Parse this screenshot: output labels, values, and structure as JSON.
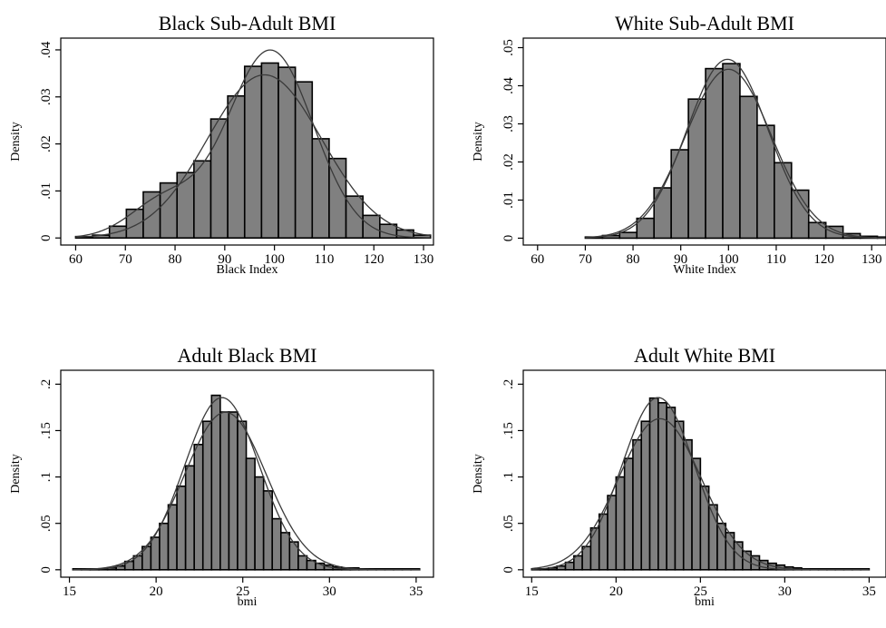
{
  "chart_data": [
    {
      "type": "bar",
      "title": "Black Sub-Adult BMI",
      "xlabel": "Black Index",
      "ylabel": "Density",
      "xlim": [
        57,
        132
      ],
      "ylim": [
        -0.0015,
        0.0425
      ],
      "xticks": [
        60,
        70,
        80,
        90,
        100,
        110,
        120,
        130
      ],
      "yticks": [
        0,
        0.01,
        0.02,
        0.03,
        0.04
      ],
      "xtick_labels": [
        "60",
        "70",
        "80",
        "90",
        "100",
        "110",
        "120",
        "130"
      ],
      "ytick_labels": [
        "0",
        ".01",
        ".02",
        ".03",
        ".04"
      ],
      "bin_edges": [
        60,
        63.4,
        66.8,
        70.2,
        73.6,
        77,
        80.4,
        83.8,
        87.2,
        90.6,
        94,
        97.4,
        100.8,
        104.2,
        107.6,
        111,
        114.4,
        117.8,
        121.2,
        124.6,
        128,
        131.4
      ],
      "values": [
        0.0003,
        0.0006,
        0.0025,
        0.0061,
        0.0098,
        0.0117,
        0.0139,
        0.0164,
        0.0253,
        0.0302,
        0.0365,
        0.0372,
        0.0363,
        0.0332,
        0.0211,
        0.0169,
        0.0089,
        0.0048,
        0.0029,
        0.0017,
        0.0006
      ],
      "curves": [
        {
          "type": "normal",
          "mean": 98,
          "sd": 11.5
        },
        {
          "type": "kernel",
          "components": [
            {
              "w": 0.86,
              "mean": 99.2,
              "sd": 8.6
            },
            {
              "w": 0.14,
              "mean": 78,
              "sd": 7
            }
          ]
        }
      ]
    },
    {
      "type": "bar",
      "title": "White Sub-Adult BMI",
      "xlabel": "White Index",
      "ylabel": "Density",
      "xlim": [
        57,
        133
      ],
      "ylim": [
        -0.0018,
        0.0525
      ],
      "xticks": [
        60,
        70,
        80,
        90,
        100,
        110,
        120,
        130
      ],
      "yticks": [
        0,
        0.01,
        0.02,
        0.03,
        0.04,
        0.05
      ],
      "xtick_labels": [
        "60",
        "70",
        "80",
        "90",
        "100",
        "110",
        "120",
        "130"
      ],
      "ytick_labels": [
        "0",
        ".01",
        ".02",
        ".03",
        ".04",
        ".05"
      ],
      "bin_edges": [
        70,
        73.6,
        77.2,
        80.8,
        84.4,
        88,
        91.6,
        95.2,
        98.8,
        102.4,
        106,
        109.6,
        113.2,
        116.8,
        120.4,
        124,
        127.6,
        131.2,
        134.8
      ],
      "values": [
        0.0003,
        0.0007,
        0.0015,
        0.0052,
        0.0132,
        0.0232,
        0.0365,
        0.0445,
        0.0458,
        0.0372,
        0.0296,
        0.0198,
        0.0126,
        0.0041,
        0.0031,
        0.0012,
        0.0005,
        0.0003
      ],
      "curves": [
        {
          "type": "normal",
          "mean": 100,
          "sd": 9
        },
        {
          "type": "kernel",
          "components": [
            {
              "w": 1,
              "mean": 99.8,
              "sd": 8.5
            }
          ]
        }
      ]
    },
    {
      "type": "bar",
      "title": "Adult Black BMI",
      "xlabel": "bmi",
      "ylabel": "Density",
      "xlim": [
        14.5,
        36
      ],
      "ylim": [
        -0.008,
        0.215
      ],
      "xticks": [
        15,
        20,
        25,
        30,
        35
      ],
      "yticks": [
        0,
        0.05,
        0.1,
        0.15,
        0.2
      ],
      "xtick_labels": [
        "15",
        "20",
        "25",
        "30",
        "35"
      ],
      "ytick_labels": [
        "0",
        ".05",
        ".1",
        ".15",
        ".2"
      ],
      "bin_edges": [
        15.2,
        15.7,
        16.2,
        16.7,
        17.2,
        17.7,
        18.2,
        18.7,
        19.2,
        19.7,
        20.2,
        20.7,
        21.2,
        21.7,
        22.2,
        22.7,
        23.2,
        23.7,
        24.2,
        24.7,
        25.2,
        25.7,
        26.2,
        26.7,
        27.2,
        27.7,
        28.2,
        28.7,
        29.2,
        29.7,
        30.2,
        30.7,
        31.2,
        31.7,
        32.2,
        32.7,
        33.2,
        33.7,
        34.2,
        34.7,
        35.2
      ],
      "values": [
        0.001,
        0.001,
        0.001,
        0.001,
        0.002,
        0.004,
        0.009,
        0.015,
        0.025,
        0.035,
        0.05,
        0.07,
        0.09,
        0.112,
        0.135,
        0.16,
        0.188,
        0.17,
        0.17,
        0.16,
        0.12,
        0.1,
        0.085,
        0.055,
        0.04,
        0.03,
        0.015,
        0.01,
        0.007,
        0.005,
        0.003,
        0.002,
        0.002,
        0.001,
        0.001,
        0.001,
        0.001,
        0.001,
        0.001,
        0.001
      ],
      "curves": [
        {
          "type": "normal",
          "mean": 24,
          "sd": 2.35
        },
        {
          "type": "kernel",
          "components": [
            {
              "w": 1,
              "mean": 23.8,
              "sd": 2.15
            }
          ]
        }
      ]
    },
    {
      "type": "bar",
      "title": "Adult White BMI",
      "xlabel": "bmi",
      "ylabel": "Density",
      "xlim": [
        14.5,
        36
      ],
      "ylim": [
        -0.008,
        0.215
      ],
      "xticks": [
        15,
        20,
        25,
        30,
        35
      ],
      "yticks": [
        0,
        0.05,
        0.1,
        0.15,
        0.2
      ],
      "xtick_labels": [
        "15",
        "20",
        "25",
        "30",
        "35"
      ],
      "ytick_labels": [
        "0",
        ".05",
        ".1",
        ".15",
        ".2"
      ],
      "bin_edges": [
        15,
        15.5,
        16,
        16.5,
        17,
        17.5,
        18,
        18.5,
        19,
        19.5,
        20,
        20.5,
        21,
        21.5,
        22,
        22.5,
        23,
        23.5,
        24,
        24.5,
        25,
        25.5,
        26,
        26.5,
        27,
        27.5,
        28,
        28.5,
        29,
        29.5,
        30,
        30.5,
        31,
        31.5,
        32,
        32.5,
        33,
        33.5,
        34,
        34.5,
        35
      ],
      "values": [
        0.001,
        0.001,
        0.002,
        0.004,
        0.008,
        0.015,
        0.025,
        0.045,
        0.06,
        0.08,
        0.1,
        0.12,
        0.14,
        0.16,
        0.185,
        0.18,
        0.175,
        0.16,
        0.14,
        0.12,
        0.09,
        0.07,
        0.05,
        0.04,
        0.03,
        0.02,
        0.015,
        0.01,
        0.007,
        0.005,
        0.003,
        0.002,
        0.001,
        0.001,
        0.001,
        0.001,
        0.001,
        0.001,
        0.001,
        0.001
      ],
      "curves": [
        {
          "type": "normal",
          "mean": 22.6,
          "sd": 2.45
        },
        {
          "type": "kernel",
          "components": [
            {
              "w": 1,
              "mean": 22.5,
              "sd": 2.15
            }
          ]
        }
      ]
    }
  ]
}
